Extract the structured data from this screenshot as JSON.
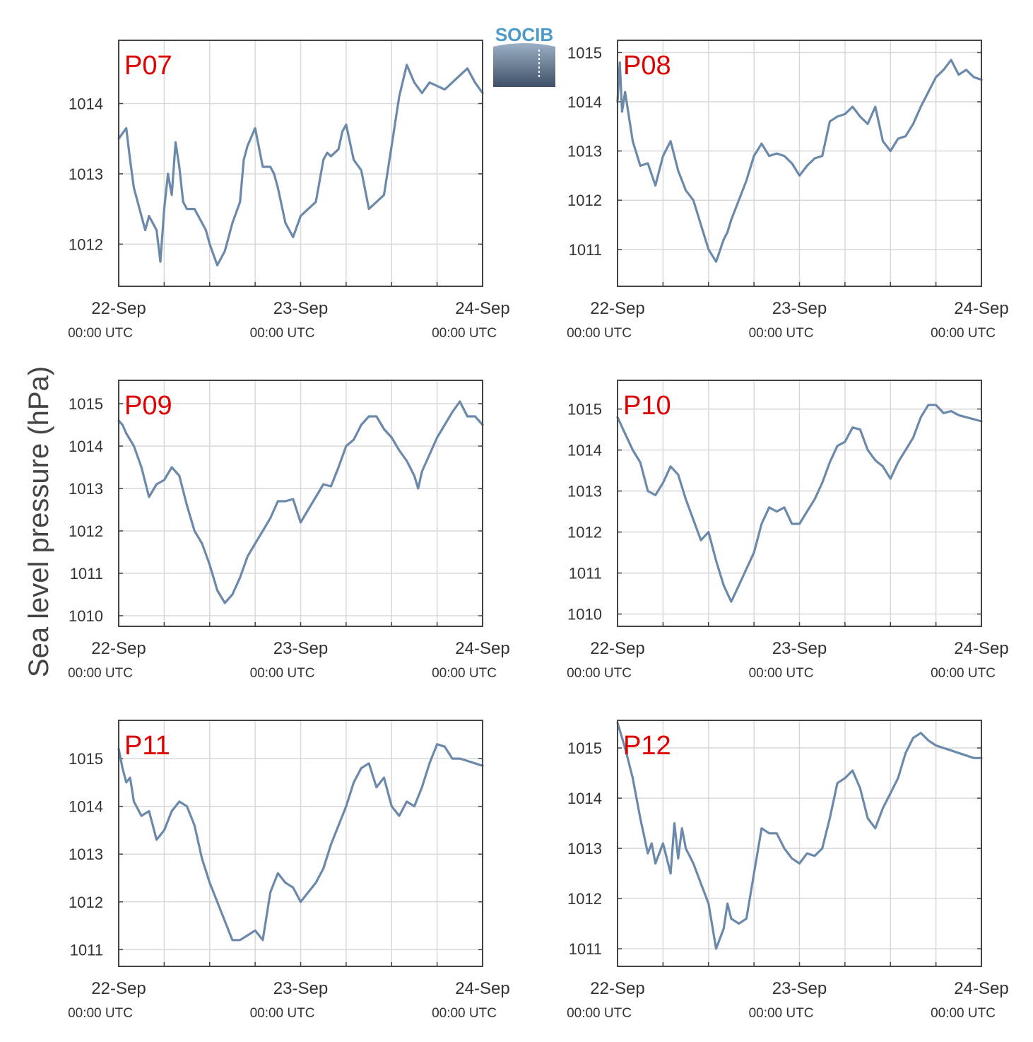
{
  "ylabel": "Sea level pressure (hPa)",
  "logo": {
    "text": "SOCIB"
  },
  "colors": {
    "line": "#6b89aa",
    "label": "#e00000",
    "grid": "#d9d9d9",
    "axis": "#444444",
    "logo": "#4a9bc9"
  },
  "x_ticks": [
    {
      "date": "22-Sep",
      "time": "00:00 UTC",
      "hour": 0
    },
    {
      "date": "23-Sep",
      "time": "00:00 UTC",
      "hour": 24
    },
    {
      "date": "24-Sep",
      "time": "00:00 UTC",
      "hour": 48
    }
  ],
  "chart_data": [
    {
      "type": "line",
      "title": "P07",
      "xlim": [
        0,
        48
      ],
      "ylim": [
        1011.4,
        1014.9
      ],
      "yticks": [
        1012,
        1013,
        1014
      ],
      "x": [
        0,
        1,
        1.5,
        2,
        3,
        3.5,
        4,
        5,
        5.5,
        6,
        6.5,
        7,
        7.5,
        8,
        8.5,
        9,
        10,
        11,
        11.5,
        12,
        13,
        14,
        15,
        16,
        16.5,
        17,
        18,
        19,
        20,
        20.5,
        21,
        22,
        23,
        24,
        25,
        26,
        27,
        27.5,
        28,
        29,
        29.5,
        30,
        31,
        32,
        33,
        34,
        34.5,
        35,
        36,
        37,
        38,
        39,
        40,
        41,
        42,
        43,
        44,
        45,
        46,
        47,
        48
      ],
      "y": [
        1013.5,
        1013.65,
        1013.2,
        1012.8,
        1012.4,
        1012.2,
        1012.4,
        1012.2,
        1011.75,
        1012.5,
        1013.0,
        1012.7,
        1013.45,
        1013.1,
        1012.6,
        1012.5,
        1012.5,
        1012.3,
        1012.2,
        1012.0,
        1011.7,
        1011.9,
        1012.3,
        1012.6,
        1013.2,
        1013.4,
        1013.65,
        1013.1,
        1013.1,
        1013.0,
        1012.8,
        1012.3,
        1012.1,
        1012.4,
        1012.5,
        1012.6,
        1013.2,
        1013.3,
        1013.25,
        1013.35,
        1013.6,
        1013.7,
        1013.2,
        1013.05,
        1012.5,
        1012.6,
        1012.65,
        1012.7,
        1013.4,
        1014.1,
        1014.55,
        1014.3,
        1014.15,
        1014.3,
        1014.25,
        1014.2,
        1014.3,
        1014.4,
        1014.5,
        1014.3,
        1014.15
      ]
    },
    {
      "type": "line",
      "title": "P08",
      "xlim": [
        0,
        48
      ],
      "ylim": [
        1010.25,
        1015.25
      ],
      "yticks": [
        1011,
        1012,
        1013,
        1014,
        1015
      ],
      "x": [
        0,
        0.3,
        0.6,
        1,
        1.5,
        2,
        3,
        4,
        5,
        6,
        7,
        8,
        9,
        10,
        11,
        12,
        13,
        14,
        14.5,
        15,
        16,
        17,
        18,
        19,
        20,
        21,
        22,
        23,
        24,
        25,
        26,
        27,
        28,
        29,
        30,
        31,
        32,
        33,
        34,
        35,
        36,
        37,
        38,
        39,
        40,
        41,
        42,
        43,
        44,
        45,
        46,
        47,
        48
      ],
      "y": [
        1014.0,
        1014.8,
        1013.8,
        1014.2,
        1013.7,
        1013.2,
        1012.7,
        1012.75,
        1012.3,
        1012.9,
        1013.2,
        1012.6,
        1012.2,
        1012.0,
        1011.5,
        1011.0,
        1010.75,
        1011.2,
        1011.35,
        1011.6,
        1012.0,
        1012.4,
        1012.9,
        1013.15,
        1012.9,
        1012.95,
        1012.9,
        1012.75,
        1012.5,
        1012.7,
        1012.85,
        1012.9,
        1013.6,
        1013.7,
        1013.75,
        1013.9,
        1013.7,
        1013.55,
        1013.9,
        1013.2,
        1013.0,
        1013.25,
        1013.3,
        1013.55,
        1013.9,
        1014.2,
        1014.5,
        1014.65,
        1014.85,
        1014.55,
        1014.65,
        1014.5,
        1014.45
      ]
    },
    {
      "type": "line",
      "title": "P09",
      "xlim": [
        0,
        48
      ],
      "ylim": [
        1009.75,
        1015.55
      ],
      "yticks": [
        1010,
        1011,
        1012,
        1013,
        1014,
        1015
      ],
      "x": [
        0,
        0.5,
        1,
        2,
        3,
        4,
        5,
        6,
        7,
        8,
        9,
        10,
        11,
        12,
        13,
        14,
        15,
        16,
        17,
        18,
        19,
        20,
        21,
        22,
        23,
        24,
        25,
        26,
        27,
        28,
        29,
        30,
        31,
        32,
        33,
        34,
        35,
        36,
        37,
        38,
        39,
        39.5,
        40,
        41,
        42,
        43,
        44,
        45,
        46,
        47,
        48
      ],
      "y": [
        1014.6,
        1014.5,
        1014.3,
        1014.0,
        1013.5,
        1012.8,
        1013.1,
        1013.2,
        1013.5,
        1013.3,
        1012.6,
        1012.0,
        1011.7,
        1011.2,
        1010.6,
        1010.3,
        1010.5,
        1010.9,
        1011.4,
        1011.7,
        1012.0,
        1012.3,
        1012.7,
        1012.7,
        1012.75,
        1012.2,
        1012.5,
        1012.8,
        1013.1,
        1013.05,
        1013.5,
        1014.0,
        1014.15,
        1014.5,
        1014.7,
        1014.7,
        1014.4,
        1014.2,
        1013.9,
        1013.65,
        1013.3,
        1013.0,
        1013.4,
        1013.8,
        1014.2,
        1014.5,
        1014.8,
        1015.05,
        1014.7,
        1014.7,
        1014.5
      ]
    },
    {
      "type": "line",
      "title": "P10",
      "xlim": [
        0,
        48
      ],
      "ylim": [
        1009.7,
        1015.7
      ],
      "yticks": [
        1010,
        1011,
        1012,
        1013,
        1014,
        1015
      ],
      "x": [
        0,
        1,
        2,
        3,
        4,
        5,
        6,
        7,
        8,
        9,
        10,
        11,
        12,
        13,
        14,
        15,
        16,
        17,
        18,
        19,
        20,
        21,
        22,
        23,
        24,
        25,
        26,
        27,
        28,
        29,
        30,
        31,
        32,
        33,
        34,
        35,
        36,
        37,
        38,
        39,
        40,
        41,
        42,
        43,
        44,
        45,
        46,
        47,
        48
      ],
      "y": [
        1014.8,
        1014.4,
        1014.0,
        1013.7,
        1013.0,
        1012.9,
        1013.2,
        1013.6,
        1013.4,
        1012.8,
        1012.3,
        1011.8,
        1012.0,
        1011.3,
        1010.7,
        1010.3,
        1010.7,
        1011.1,
        1011.5,
        1012.2,
        1012.6,
        1012.5,
        1012.6,
        1012.2,
        1012.2,
        1012.5,
        1012.8,
        1013.2,
        1013.7,
        1014.1,
        1014.2,
        1014.55,
        1014.5,
        1014.0,
        1013.75,
        1013.6,
        1013.3,
        1013.7,
        1014.0,
        1014.3,
        1014.8,
        1015.1,
        1015.1,
        1014.9,
        1014.95,
        1014.85,
        1014.8,
        1014.75,
        1014.7
      ]
    },
    {
      "type": "line",
      "title": "P11",
      "xlim": [
        0,
        48
      ],
      "ylim": [
        1010.65,
        1015.8
      ],
      "yticks": [
        1011,
        1012,
        1013,
        1014,
        1015
      ],
      "x": [
        0,
        0.5,
        1,
        1.5,
        2,
        3,
        4,
        5,
        6,
        7,
        8,
        9,
        10,
        11,
        12,
        13,
        14,
        15,
        16,
        17,
        18,
        19,
        20,
        21,
        22,
        23,
        24,
        25,
        26,
        27,
        28,
        29,
        30,
        31,
        32,
        33,
        34,
        35,
        36,
        37,
        38,
        39,
        40,
        41,
        42,
        43,
        44,
        45,
        46,
        47,
        48
      ],
      "y": [
        1015.2,
        1014.8,
        1014.5,
        1014.6,
        1014.1,
        1013.8,
        1013.9,
        1013.3,
        1013.5,
        1013.9,
        1014.1,
        1014.0,
        1013.6,
        1012.9,
        1012.4,
        1012.0,
        1011.6,
        1011.2,
        1011.2,
        1011.3,
        1011.4,
        1011.2,
        1012.2,
        1012.6,
        1012.4,
        1012.3,
        1012.0,
        1012.2,
        1012.4,
        1012.7,
        1013.2,
        1013.6,
        1014.0,
        1014.5,
        1014.8,
        1014.9,
        1014.4,
        1014.6,
        1014.0,
        1013.8,
        1014.1,
        1014.0,
        1014.4,
        1014.9,
        1015.3,
        1015.25,
        1015.0,
        1015.0,
        1014.95,
        1014.9,
        1014.85
      ]
    },
    {
      "type": "line",
      "title": "P12",
      "xlim": [
        0,
        48
      ],
      "ylim": [
        1010.65,
        1015.55
      ],
      "yticks": [
        1011,
        1012,
        1013,
        1014,
        1015
      ],
      "x": [
        0,
        1,
        1.5,
        2,
        3,
        4,
        4.5,
        5,
        6,
        7,
        7.5,
        8,
        8.5,
        9,
        10,
        11,
        12,
        13,
        14,
        14.5,
        15,
        16,
        17,
        18,
        19,
        20,
        21,
        22,
        23,
        24,
        25,
        26,
        27,
        28,
        29,
        30,
        31,
        32,
        33,
        34,
        35,
        36,
        37,
        38,
        39,
        40,
        41,
        42,
        43,
        44,
        45,
        46,
        47,
        48
      ],
      "y": [
        1015.5,
        1015.0,
        1014.7,
        1014.4,
        1013.6,
        1012.9,
        1013.1,
        1012.7,
        1013.1,
        1012.5,
        1013.5,
        1012.8,
        1013.4,
        1013.0,
        1012.7,
        1012.3,
        1011.9,
        1011.0,
        1011.4,
        1011.9,
        1011.6,
        1011.5,
        1011.6,
        1012.5,
        1013.4,
        1013.3,
        1013.3,
        1013.0,
        1012.8,
        1012.7,
        1012.9,
        1012.85,
        1013.0,
        1013.6,
        1014.3,
        1014.4,
        1014.55,
        1014.2,
        1013.6,
        1013.4,
        1013.8,
        1014.1,
        1014.4,
        1014.9,
        1015.2,
        1015.3,
        1015.15,
        1015.05,
        1015.0,
        1014.95,
        1014.9,
        1014.85,
        1014.8,
        1014.8
      ]
    }
  ]
}
